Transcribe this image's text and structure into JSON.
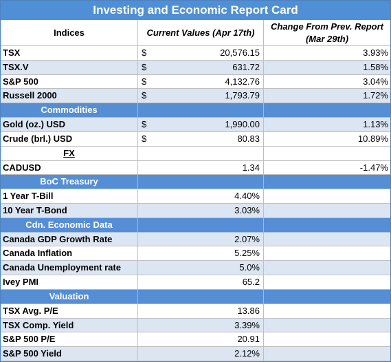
{
  "title": "Investing and Economic Report Card",
  "header": [
    "Indices",
    "Current Values (Apr 17th)",
    "Change From Prev. Report (Mar 29th)"
  ],
  "rows": [
    {
      "label": "TSX",
      "currency": "$",
      "current": "20,576.15",
      "change": "3.93%"
    },
    {
      "label": "TSX.V",
      "currency": "$",
      "current": "631.72",
      "change": "1.58%"
    },
    {
      "label": "S&P 500",
      "currency": "$",
      "current": "4,132.76",
      "change": "3.04%"
    },
    {
      "label": "Russell 2000",
      "currency": "$",
      "current": "1,793.79",
      "change": "1.72%"
    },
    {
      "section": "Commodities"
    },
    {
      "label": "Gold (oz.) USD",
      "currency": "$",
      "current": "1,990.00",
      "change": "1.13%"
    },
    {
      "label": "Crude (brl.) USD",
      "currency": "$",
      "current": "80.83",
      "change": "10.89%"
    },
    {
      "heading": "FX"
    },
    {
      "label": "CADUSD",
      "current": "1.34",
      "change": "-1.47%"
    },
    {
      "section": "BoC Treasury"
    },
    {
      "label": "1 Year T-Bill",
      "current": "4.40%"
    },
    {
      "label": "10 Year T-Bond",
      "current": "3.03%"
    },
    {
      "section": "Cdn. Economic Data"
    },
    {
      "label": "Canada GDP Growth Rate",
      "current": "2.07%"
    },
    {
      "label": "Canada Inflation",
      "current": "5.25%"
    },
    {
      "label": "Canada Unemployment rate",
      "current": "5.0%"
    },
    {
      "label": "Ivey PMI",
      "current": "65.2"
    },
    {
      "section": "Valuation"
    },
    {
      "label": "TSX Avg. P/E",
      "current": "13.86"
    },
    {
      "label": "TSX Comp. Yield",
      "current": "3.39%"
    },
    {
      "label": "S&P 500 P/E",
      "current": "20.91"
    },
    {
      "label": "S&P 500 Yield",
      "current": "2.12%"
    }
  ]
}
